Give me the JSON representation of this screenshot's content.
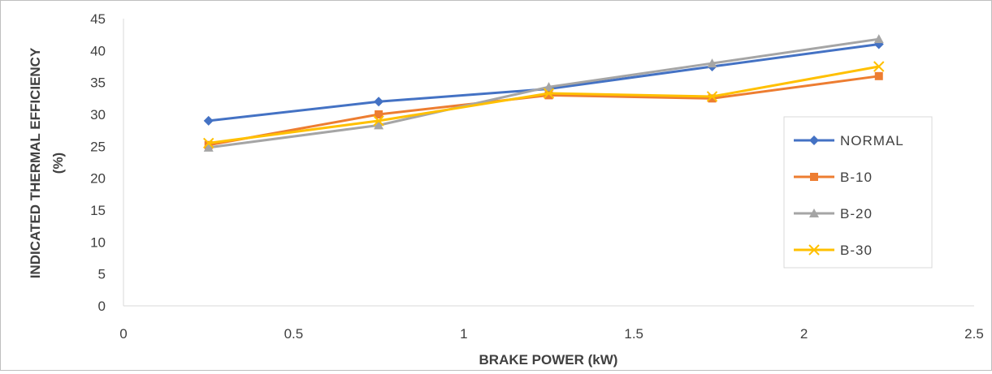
{
  "chart_data": {
    "type": "line",
    "title": "",
    "xlabel": "BRAKE POWER (kW)",
    "ylabel_lines": [
      "INDICATED THERMAL EFFICIENCY",
      "(%)"
    ],
    "xlim": [
      0,
      2.5
    ],
    "ylim": [
      0,
      45
    ],
    "xticks": [
      "0",
      "0.5",
      "1",
      "1.5",
      "2",
      "2.5"
    ],
    "yticks": [
      "0",
      "5",
      "10",
      "15",
      "20",
      "25",
      "30",
      "35",
      "40",
      "45"
    ],
    "grid": false,
    "legend_position": "right",
    "x": [
      0.25,
      0.75,
      1.25,
      1.73,
      2.22
    ],
    "series": [
      {
        "name": "NORMAL",
        "color": "#4472c4",
        "marker": "diamond",
        "values": [
          29.0,
          32.0,
          34.0,
          37.5,
          41.0
        ]
      },
      {
        "name": "B-10",
        "color": "#ed7d31",
        "marker": "square",
        "values": [
          25.2,
          30.0,
          33.0,
          32.5,
          36.0
        ]
      },
      {
        "name": "B-20",
        "color": "#a5a5a5",
        "marker": "triangle",
        "values": [
          24.8,
          28.3,
          34.3,
          38.0,
          41.8
        ]
      },
      {
        "name": "B-30",
        "color": "#ffc000",
        "marker": "x",
        "values": [
          25.5,
          29.0,
          33.3,
          32.8,
          37.5
        ]
      }
    ]
  }
}
